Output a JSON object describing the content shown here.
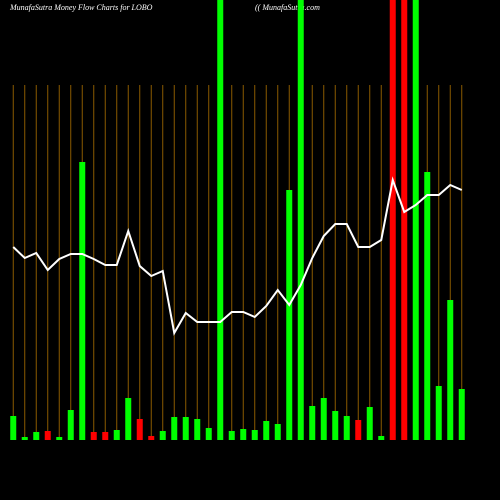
{
  "chart_data": {
    "type": "bar-line",
    "title": "MunafaSutra  Money Flow  Charts for LOBO",
    "subtitle": "(( MunafaSutra.com",
    "categories": [
      null,
      null,
      null,
      null,
      null,
      null,
      null,
      null,
      null,
      null,
      null,
      null,
      null,
      null,
      null,
      null,
      null,
      null,
      null,
      null,
      null,
      null,
      null,
      null,
      null,
      null,
      null,
      null,
      null,
      null,
      null,
      null,
      null,
      null,
      null,
      null,
      null,
      null,
      null,
      null
    ],
    "ylim": [
      0,
      440
    ],
    "grid": true,
    "grid_color": "#8a5a00",
    "series": [
      {
        "type": "bar",
        "values": [
          24,
          3,
          8,
          9,
          3,
          30,
          278,
          8,
          8,
          10,
          42,
          21,
          4,
          9,
          23,
          23,
          21,
          12,
          440,
          9,
          11,
          10,
          19,
          16,
          250,
          440,
          34,
          42,
          29,
          24,
          20,
          33,
          4,
          440,
          440,
          440,
          268,
          54,
          140,
          51
        ],
        "colors": [
          "#00ff00",
          "#00ff00",
          "#00ff00",
          "#ff0000",
          "#00ff00",
          "#00ff00",
          "#00ff00",
          "#ff0000",
          "#ff0000",
          "#00ff00",
          "#00ff00",
          "#ff0000",
          "#ff0000",
          "#00ff00",
          "#00ff00",
          "#00ff00",
          "#00ff00",
          "#00ff00",
          "#00ff00",
          "#00ff00",
          "#00ff00",
          "#00ff00",
          "#00ff00",
          "#00ff00",
          "#00ff00",
          "#00ff00",
          "#00ff00",
          "#00ff00",
          "#00ff00",
          "#00ff00",
          "#ff0000",
          "#00ff00",
          "#00ff00",
          "#ff0000",
          "#ff0000",
          "#00ff00",
          "#00ff00",
          "#00ff00",
          "#00ff00",
          "#00ff00"
        ]
      },
      {
        "type": "line",
        "color": "#ffffff",
        "values": [
          193,
          182,
          187,
          170,
          181,
          186,
          186,
          181,
          175,
          175,
          209,
          174,
          164,
          169,
          107,
          127,
          118,
          118,
          118,
          128,
          128,
          123,
          134,
          150,
          135,
          155,
          182,
          204,
          216,
          216,
          193,
          193,
          200,
          260,
          228,
          235,
          245,
          245,
          255,
          250
        ]
      }
    ]
  }
}
